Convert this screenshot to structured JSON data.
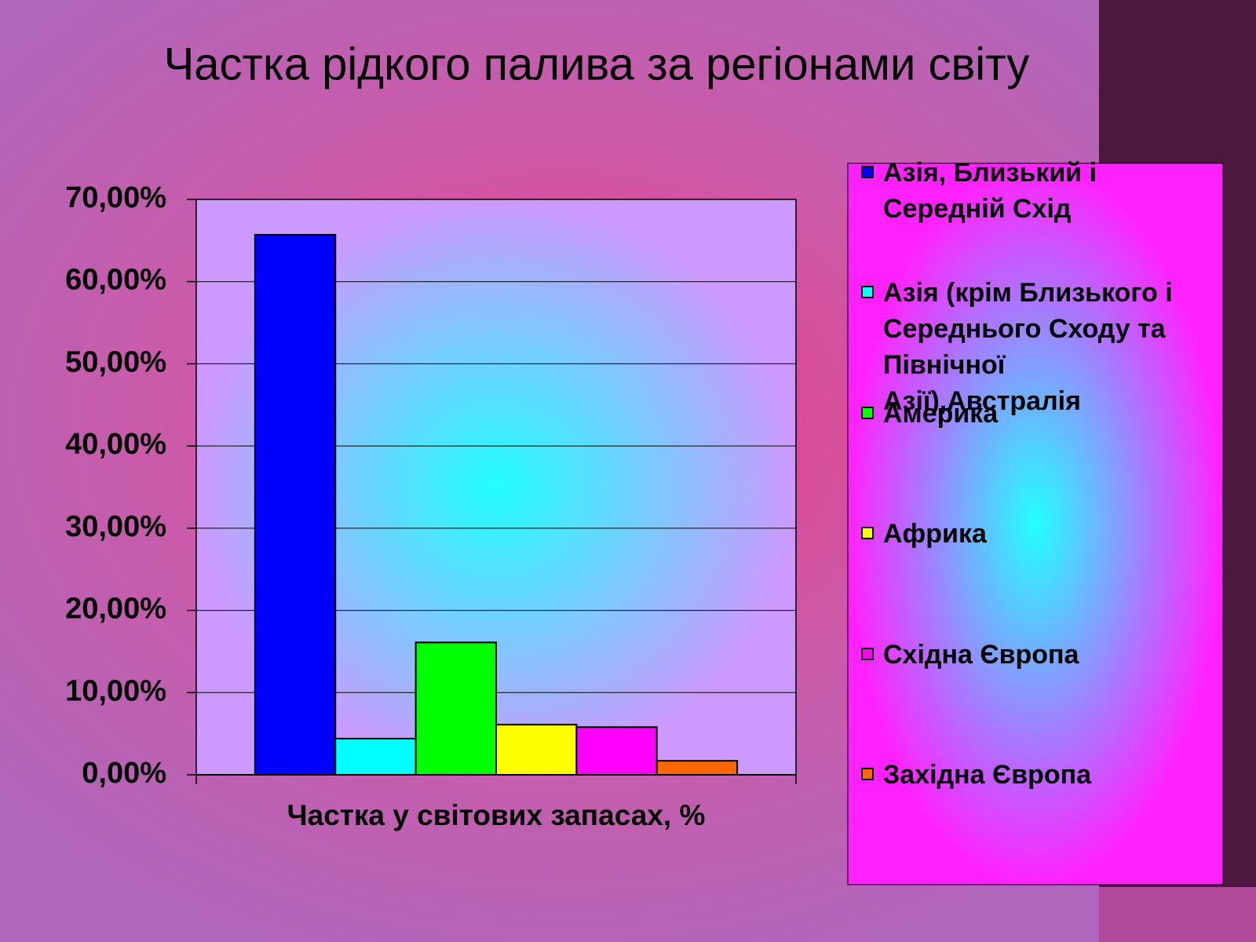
{
  "chart_data": {
    "type": "bar",
    "title": "Частка рідкого палива за регіонами світу",
    "categories": [
      "Частка у світових запасах, %"
    ],
    "series": [
      {
        "name": "Азія, Близький і Середній Схід",
        "color": "#0000ff",
        "values": [
          65.7
        ]
      },
      {
        "name": "Азія (крім Близького і Середнього Сходу та Північної Азії),Австралія",
        "color": "#00ffff",
        "values": [
          4.4
        ]
      },
      {
        "name": "Америка",
        "color": "#00ff00",
        "values": [
          16.1
        ]
      },
      {
        "name": "Африка",
        "color": "#ffff00",
        "values": [
          6.1
        ]
      },
      {
        "name": "Східна Європа",
        "color": "#ff00ff",
        "values": [
          5.8
        ]
      },
      {
        "name": "Західна Європа",
        "color": "#ff6600",
        "values": [
          1.7
        ]
      }
    ],
    "ylim": [
      0,
      70
    ],
    "yticks": [
      {
        "value": 0,
        "label": "0,00%"
      },
      {
        "value": 10,
        "label": "10,00%"
      },
      {
        "value": 20,
        "label": "20,00%"
      },
      {
        "value": 30,
        "label": "30,00%"
      },
      {
        "value": 40,
        "label": "40,00%"
      },
      {
        "value": 50,
        "label": "50,00%"
      },
      {
        "value": 60,
        "label": "60,00%"
      },
      {
        "value": 70,
        "label": "70,00%"
      }
    ],
    "grid": true,
    "legend": "right"
  }
}
